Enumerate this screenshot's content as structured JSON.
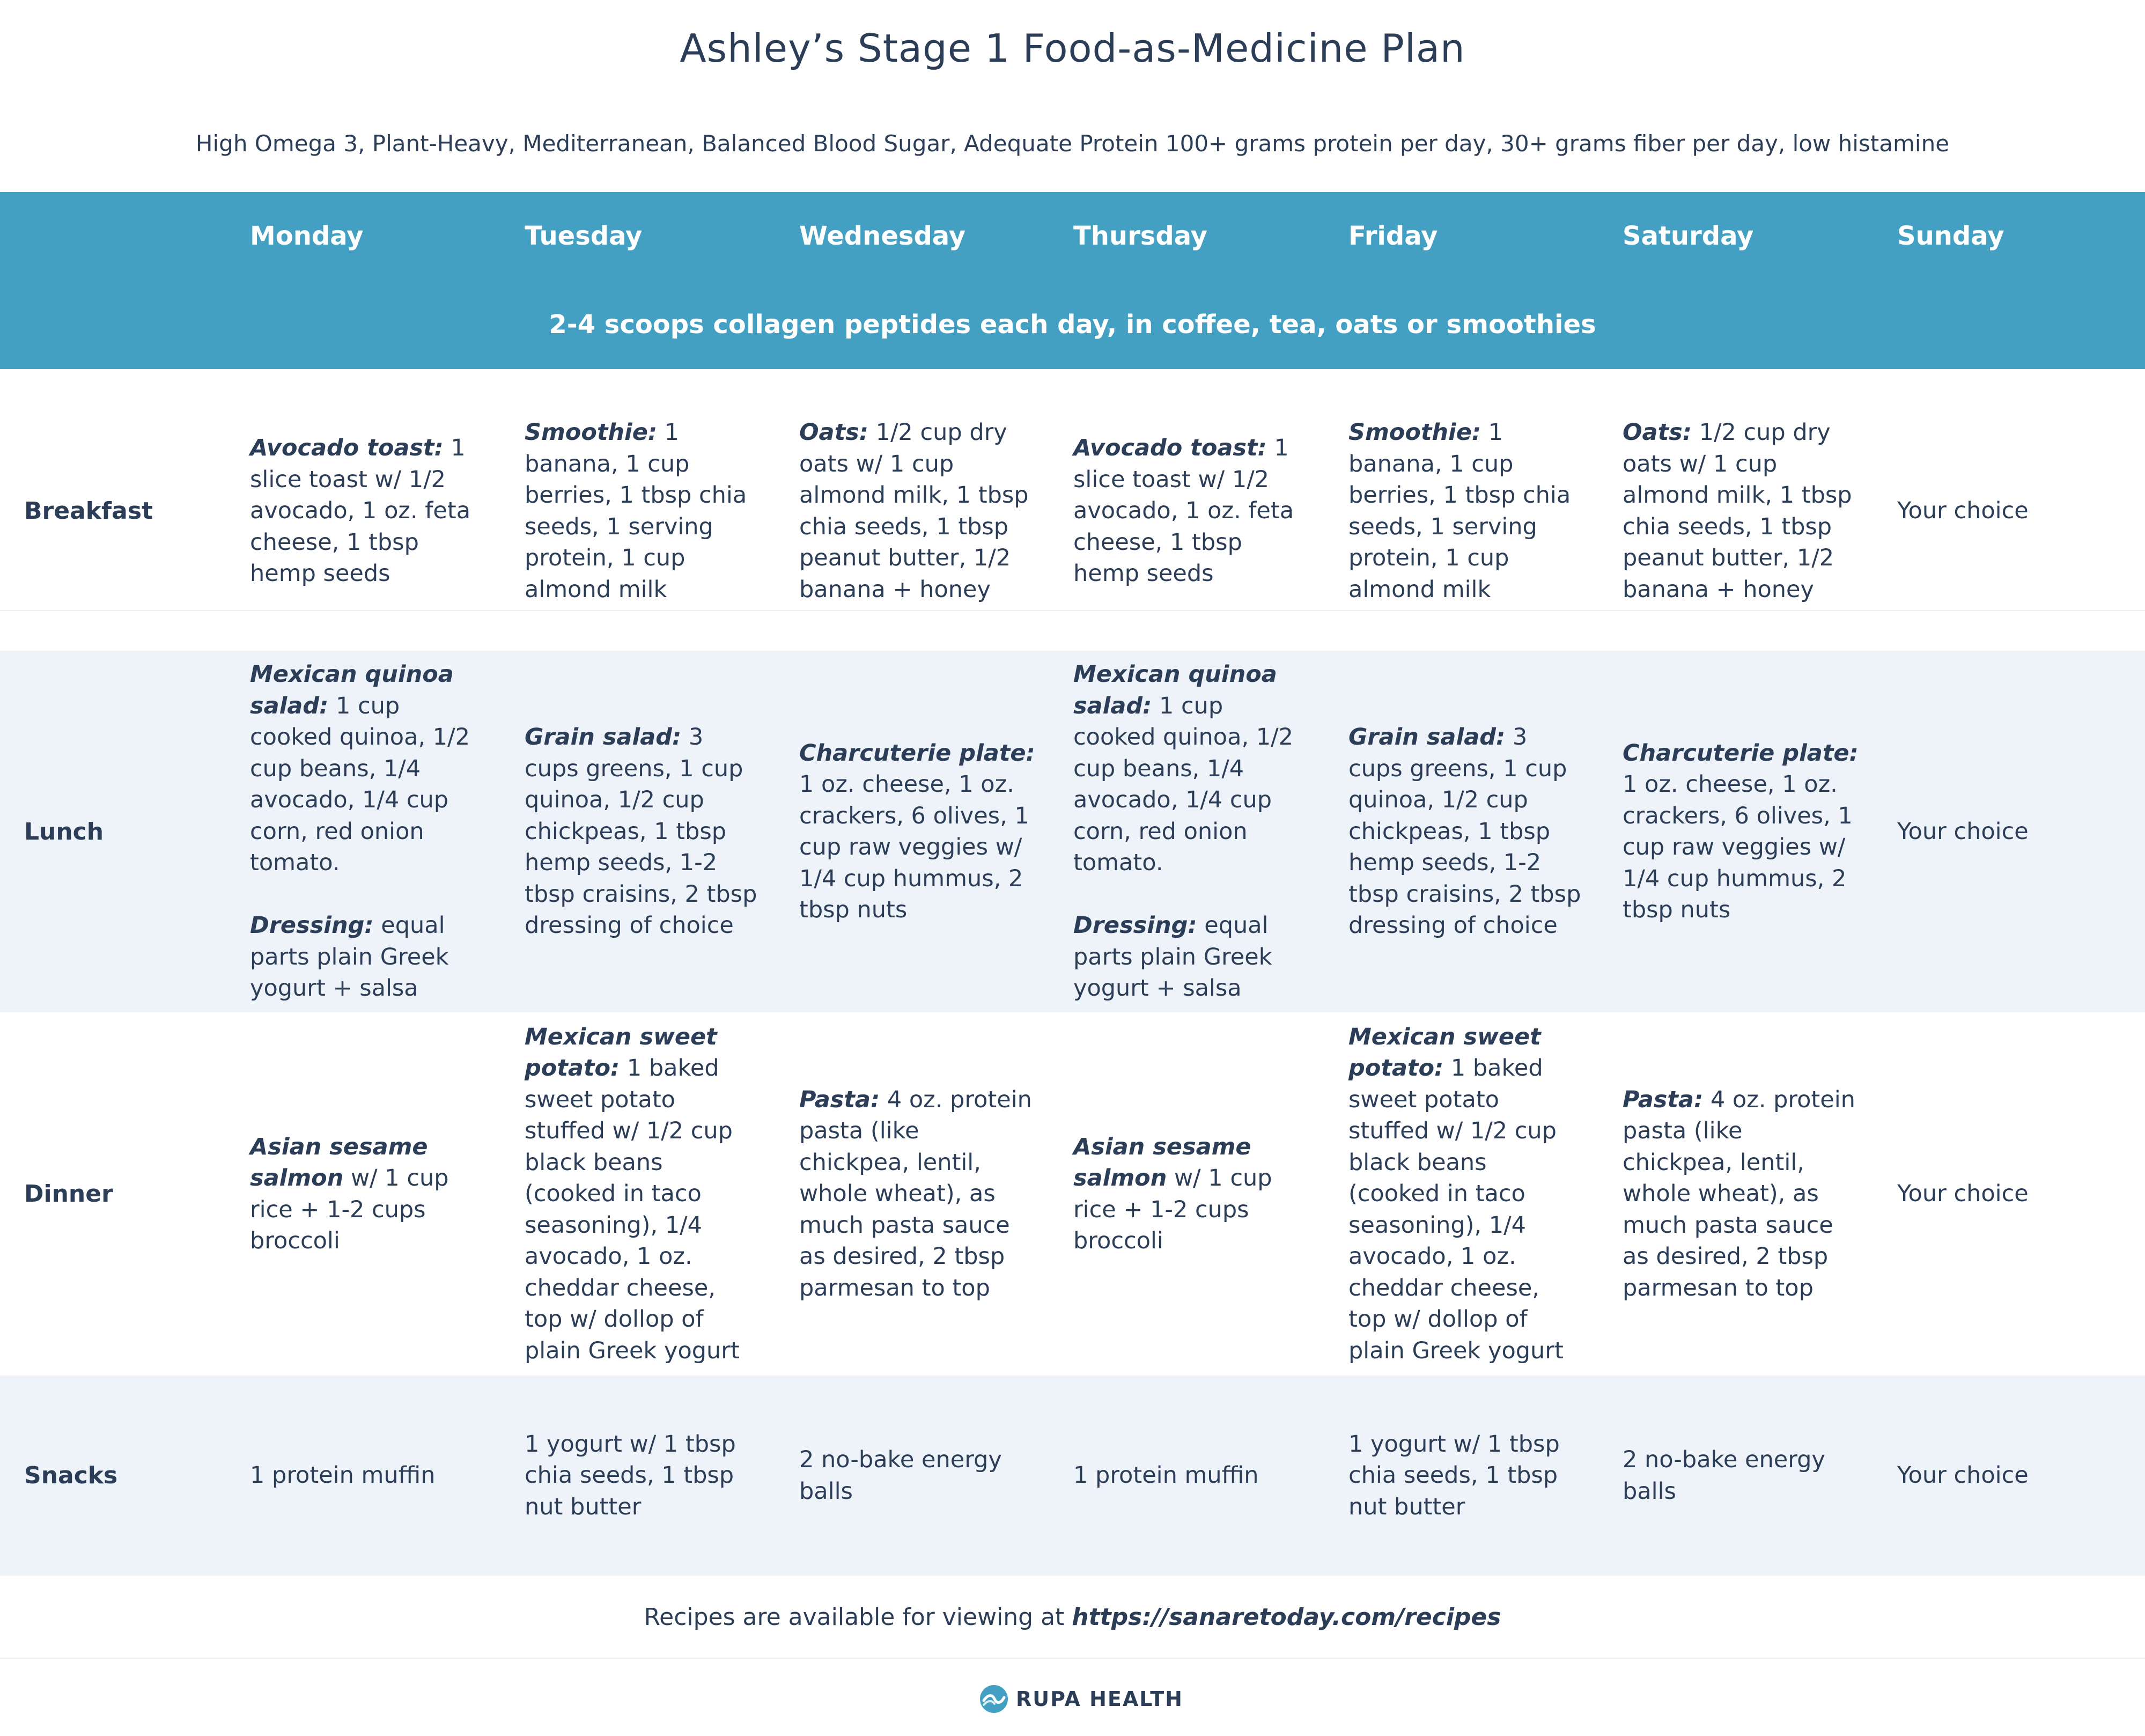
{
  "title": "Ashley’s Stage 1 Food-as-Medicine Plan",
  "subtitle": "High Omega 3, Plant-Heavy, Mediterranean, Balanced Blood Sugar, Adequate Protein 100+ grams protein per day, 30+ grams fiber per day, low histamine",
  "days": [
    "Monday",
    "Tuesday",
    "Wednesday",
    "Thursday",
    "Friday",
    "Saturday",
    "Sunday"
  ],
  "collagen_note": "2-4 scoops collagen peptides each day, in coffee, tea, oats or smoothies",
  "meals": {
    "breakfast": {
      "label": "Breakfast",
      "cells": [
        {
          "lbl": "Avocado toast:",
          "text": " 1 slice toast w/ 1/2 avocado, 1 oz. feta cheese, 1 tbsp hemp seeds"
        },
        {
          "lbl": "Smoothie:",
          "text": " 1 banana, 1 cup berries, 1 tbsp chia seeds, 1 serving protein, 1 cup almond milk"
        },
        {
          "lbl": "Oats:",
          "text": " 1/2 cup dry oats w/ 1 cup almond milk, 1 tbsp chia seeds, 1 tbsp peanut butter, 1/2 banana + honey"
        },
        {
          "lbl": "Avocado toast:",
          "text": " 1 slice toast w/ 1/2 avocado, 1 oz. feta cheese, 1 tbsp hemp seeds"
        },
        {
          "lbl": "Smoothie:",
          "text": " 1 banana, 1 cup berries, 1 tbsp chia seeds, 1 serving protein, 1 cup almond milk"
        },
        {
          "lbl": "Oats:",
          "text": " 1/2 cup dry oats w/ 1 cup almond milk, 1 tbsp chia seeds, 1 tbsp peanut butter, 1/2 banana + honey"
        },
        {
          "lbl": "",
          "text": "Your choice"
        }
      ]
    },
    "lunch": {
      "label": "Lunch",
      "cells": [
        {
          "lbl": "Mexican quinoa salad:",
          "text": " 1 cup cooked quinoa, 1/2 cup beans, 1/4 avocado, 1/4 cup corn, red onion tomato.",
          "lbl2": "Dressing:",
          "text2": " equal parts plain Greek yogurt + salsa"
        },
        {
          "lbl": "Grain salad:",
          "text": " 3 cups greens, 1 cup quinoa, 1/2 cup chickpeas, 1 tbsp hemp seeds, 1-2 tbsp craisins, 2 tbsp dressing of choice"
        },
        {
          "lbl": "Charcuterie plate:",
          "text": " 1 oz. cheese, 1 oz. crackers, 6 olives, 1 cup raw veggies w/ 1/4 cup hummus, 2 tbsp nuts"
        },
        {
          "lbl": "Mexican quinoa salad:",
          "text": " 1 cup cooked quinoa, 1/2 cup beans, 1/4 avocado, 1/4 cup corn, red onion tomato.",
          "lbl2": "Dressing:",
          "text2": " equal parts plain Greek yogurt + salsa"
        },
        {
          "lbl": "Grain salad:",
          "text": " 3 cups greens, 1 cup quinoa, 1/2 cup chickpeas, 1 tbsp hemp seeds, 1-2 tbsp craisins, 2 tbsp dressing of choice"
        },
        {
          "lbl": "Charcuterie plate:",
          "text": " 1 oz. cheese, 1 oz. crackers, 6 olives, 1 cup raw veggies w/ 1/4 cup hummus, 2 tbsp nuts"
        },
        {
          "lbl": "",
          "text": "Your choice"
        }
      ]
    },
    "dinner": {
      "label": "Dinner",
      "cells": [
        {
          "lbl": "Asian sesame salmon",
          "text": " w/ 1 cup rice + 1-2 cups broccoli"
        },
        {
          "lbl": "Mexican sweet potato:",
          "text": " 1 baked sweet potato stuffed w/ 1/2 cup black beans (cooked in taco seasoning), 1/4 avocado, 1 oz. cheddar cheese, top w/ dollop of plain Greek yogurt"
        },
        {
          "lbl": "Pasta:",
          "text": " 4 oz. protein pasta (like chickpea, lentil, whole wheat), as much pasta sauce as desired, 2 tbsp parmesan to top"
        },
        {
          "lbl": "Asian sesame salmon",
          "text": " w/ 1 cup rice + 1-2 cups broccoli"
        },
        {
          "lbl": "Mexican sweet potato:",
          "text": " 1 baked sweet potato stuffed w/ 1/2 cup black beans (cooked in taco seasoning), 1/4 avocado, 1 oz. cheddar cheese, top w/ dollop of plain Greek yogurt"
        },
        {
          "lbl": "Pasta:",
          "text": " 4 oz. protein pasta (like chickpea, lentil, whole wheat), as much pasta sauce as desired, 2 tbsp parmesan to top"
        },
        {
          "lbl": "",
          "text": "Your choice"
        }
      ]
    },
    "snacks": {
      "label": "Snacks",
      "cells": [
        {
          "lbl": "",
          "text": "1 protein muffin"
        },
        {
          "lbl": "",
          "text": "1 yogurt w/ 1 tbsp chia seeds, 1 tbsp nut butter"
        },
        {
          "lbl": "",
          "text": "2 no-bake energy balls"
        },
        {
          "lbl": "",
          "text": "1 protein muffin"
        },
        {
          "lbl": "",
          "text": "1 yogurt w/ 1 tbsp chia seeds, 1 tbsp nut butter"
        },
        {
          "lbl": "",
          "text": "2 no-bake energy balls"
        },
        {
          "lbl": "",
          "text": "Your choice"
        }
      ]
    }
  },
  "footer": {
    "note": "Recipes are available for viewing at ",
    "url": "https://sanaretoday.com/recipes"
  },
  "brand": {
    "name": "RUPA HEALTH",
    "icon": "rupa-logo-icon",
    "color": "#43a0c2"
  },
  "colors": {
    "header": "#43a0c2",
    "text": "#2c3e57",
    "alt_row": "#eef2f9"
  }
}
